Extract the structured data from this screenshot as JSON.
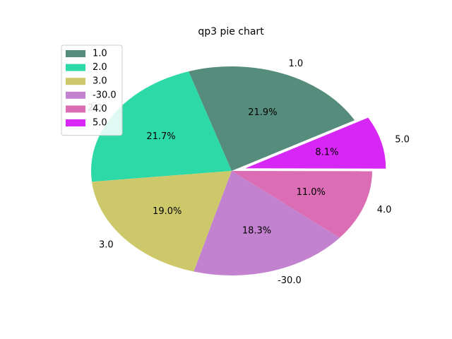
{
  "chart_data": {
    "type": "pie",
    "title": "qp3 pie chart",
    "categories": [
      "1.0",
      "2.0",
      "3.0",
      "-30.0",
      "4.0",
      "5.0"
    ],
    "values": [
      21.9,
      21.7,
      19.0,
      18.3,
      11.0,
      8.1
    ],
    "percent_labels": [
      "21.9%",
      "21.7%",
      "19.0%",
      "18.3%",
      "11.0%",
      "8.1%"
    ],
    "colors": [
      "#568c7c",
      "#2dd9a7",
      "#cdc96a",
      "#c282cf",
      "#da6db4",
      "#d627f4"
    ],
    "exploded": [
      false,
      false,
      false,
      false,
      false,
      true
    ],
    "start_angle_deg": 29,
    "legend": {
      "placement": "upper-left",
      "entries": [
        "1.0",
        "2.0",
        "3.0",
        "-30.0",
        "4.0",
        "5.0"
      ]
    }
  }
}
